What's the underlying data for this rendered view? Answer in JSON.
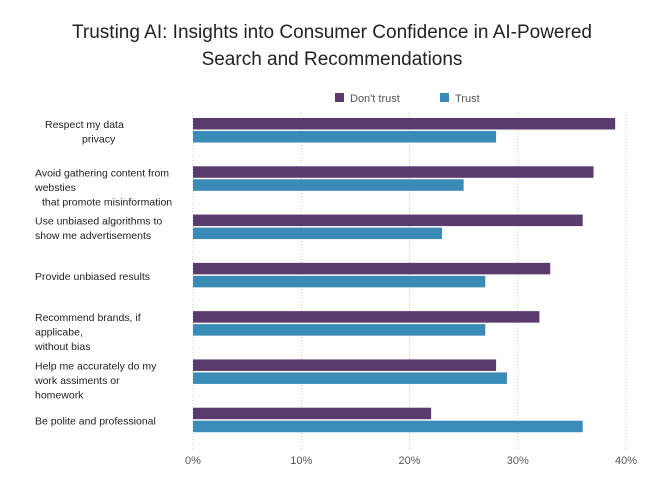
{
  "chart_data": {
    "type": "bar",
    "orientation": "horizontal",
    "title_lines": [
      "Trusting AI: Insights into Consumer Confidence in AI-Powered",
      "Search and Recommendations"
    ],
    "categories": [
      [
        "Respect my data",
        "privacy"
      ],
      [
        "Avoid gathering content from",
        "websties",
        "that promote misinformation"
      ],
      [
        "Use unbiased algorithms to",
        "show me advertisements"
      ],
      [
        "Provide unbiased results"
      ],
      [
        "Recommend brands, if",
        "applicabe,",
        "without bias"
      ],
      [
        "Help me accurately do my",
        "work assiments or",
        "homework"
      ],
      [
        "Be polite and professional"
      ]
    ],
    "series": [
      {
        "name": "Don't trust",
        "color": "#5b3a6e",
        "values": [
          39,
          37,
          36,
          33,
          32,
          28,
          22
        ]
      },
      {
        "name": "Trust",
        "color": "#3a8bb7",
        "values": [
          28,
          25,
          23,
          27,
          27,
          29,
          36
        ]
      }
    ],
    "xlim": [
      0,
      40
    ],
    "xticks": [
      "0%",
      "10%",
      "20%",
      "30%",
      "40%"
    ],
    "grid": true,
    "legend_position": "top-right"
  }
}
